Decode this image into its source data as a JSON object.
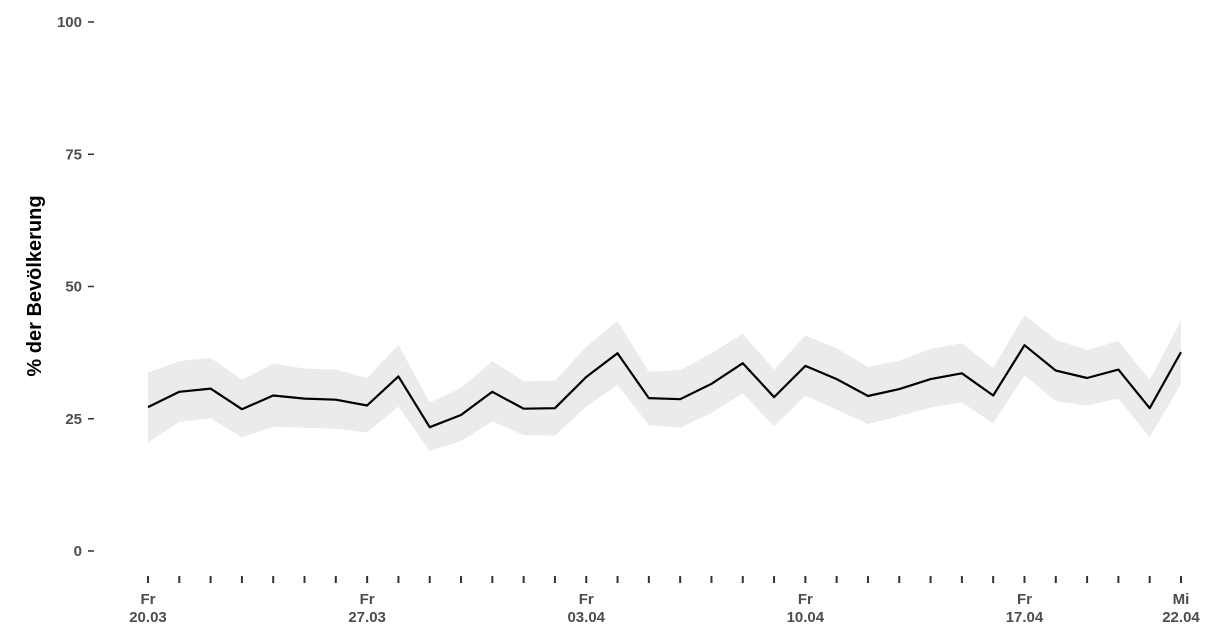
{
  "chart_data": {
    "type": "line",
    "title": "",
    "xlabel": "",
    "ylabel": "% der Bevölkerung",
    "ylim": [
      0,
      100
    ],
    "yticks": [
      0,
      25,
      50,
      75,
      100
    ],
    "grid": false,
    "x": [
      "20.03",
      "21.03",
      "22.03",
      "23.03",
      "24.03",
      "25.03",
      "26.03",
      "27.03",
      "28.03",
      "29.03",
      "30.03",
      "31.03",
      "01.04",
      "02.04",
      "03.04",
      "04.04",
      "05.04",
      "06.04",
      "07.04",
      "08.04",
      "09.04",
      "10.04",
      "11.04",
      "12.04",
      "13.04",
      "14.04",
      "15.04",
      "16.04",
      "17.04",
      "18.04",
      "19.04",
      "20.04",
      "21.04",
      "22.04"
    ],
    "xtick_labels": [
      {
        "index": 0,
        "day": "Fr",
        "date": "20.03"
      },
      {
        "index": 7,
        "day": "Fr",
        "date": "27.03"
      },
      {
        "index": 14,
        "day": "Fr",
        "date": "03.04"
      },
      {
        "index": 21,
        "day": "Fr",
        "date": "10.04"
      },
      {
        "index": 28,
        "day": "Fr",
        "date": "17.04"
      },
      {
        "index": 33,
        "day": "Mi",
        "date": "22.04"
      }
    ],
    "series": [
      {
        "values": [
          27.2,
          30.1,
          30.7,
          26.8,
          29.4,
          28.8,
          28.6,
          27.5,
          33.0,
          23.4,
          25.7,
          30.1,
          26.9,
          27.0,
          32.9,
          37.4,
          28.9,
          28.7,
          31.6,
          35.5,
          29.1,
          35.0,
          32.5,
          29.3,
          30.6,
          32.5,
          33.6,
          29.4,
          38.9,
          34.1,
          32.7,
          34.3,
          27.0,
          37.6
        ],
        "lower": [
          20.5,
          24.4,
          25.1,
          21.5,
          23.5,
          23.3,
          23.1,
          22.4,
          27.3,
          18.9,
          20.8,
          24.5,
          21.9,
          21.8,
          27.3,
          31.4,
          23.8,
          23.3,
          26.1,
          29.8,
          23.6,
          29.4,
          26.7,
          24.0,
          25.5,
          27.1,
          28.1,
          24.1,
          33.2,
          28.3,
          27.5,
          28.8,
          21.5,
          31.6
        ],
        "upper": [
          33.7,
          35.9,
          36.5,
          32.4,
          35.4,
          34.5,
          34.3,
          32.7,
          39.0,
          28.1,
          30.8,
          35.9,
          32.1,
          32.2,
          38.6,
          43.5,
          33.9,
          34.2,
          37.4,
          41.1,
          34.3,
          40.8,
          38.3,
          34.8,
          36.0,
          38.2,
          39.3,
          34.6,
          44.6,
          39.9,
          38.0,
          39.7,
          32.3,
          43.6
        ]
      }
    ],
    "colors": {
      "line": "#000000",
      "band": "#ebebeb",
      "tick_text": "#4d4d4d",
      "tick_mark": "#333333",
      "axis_title": "#000000"
    }
  }
}
